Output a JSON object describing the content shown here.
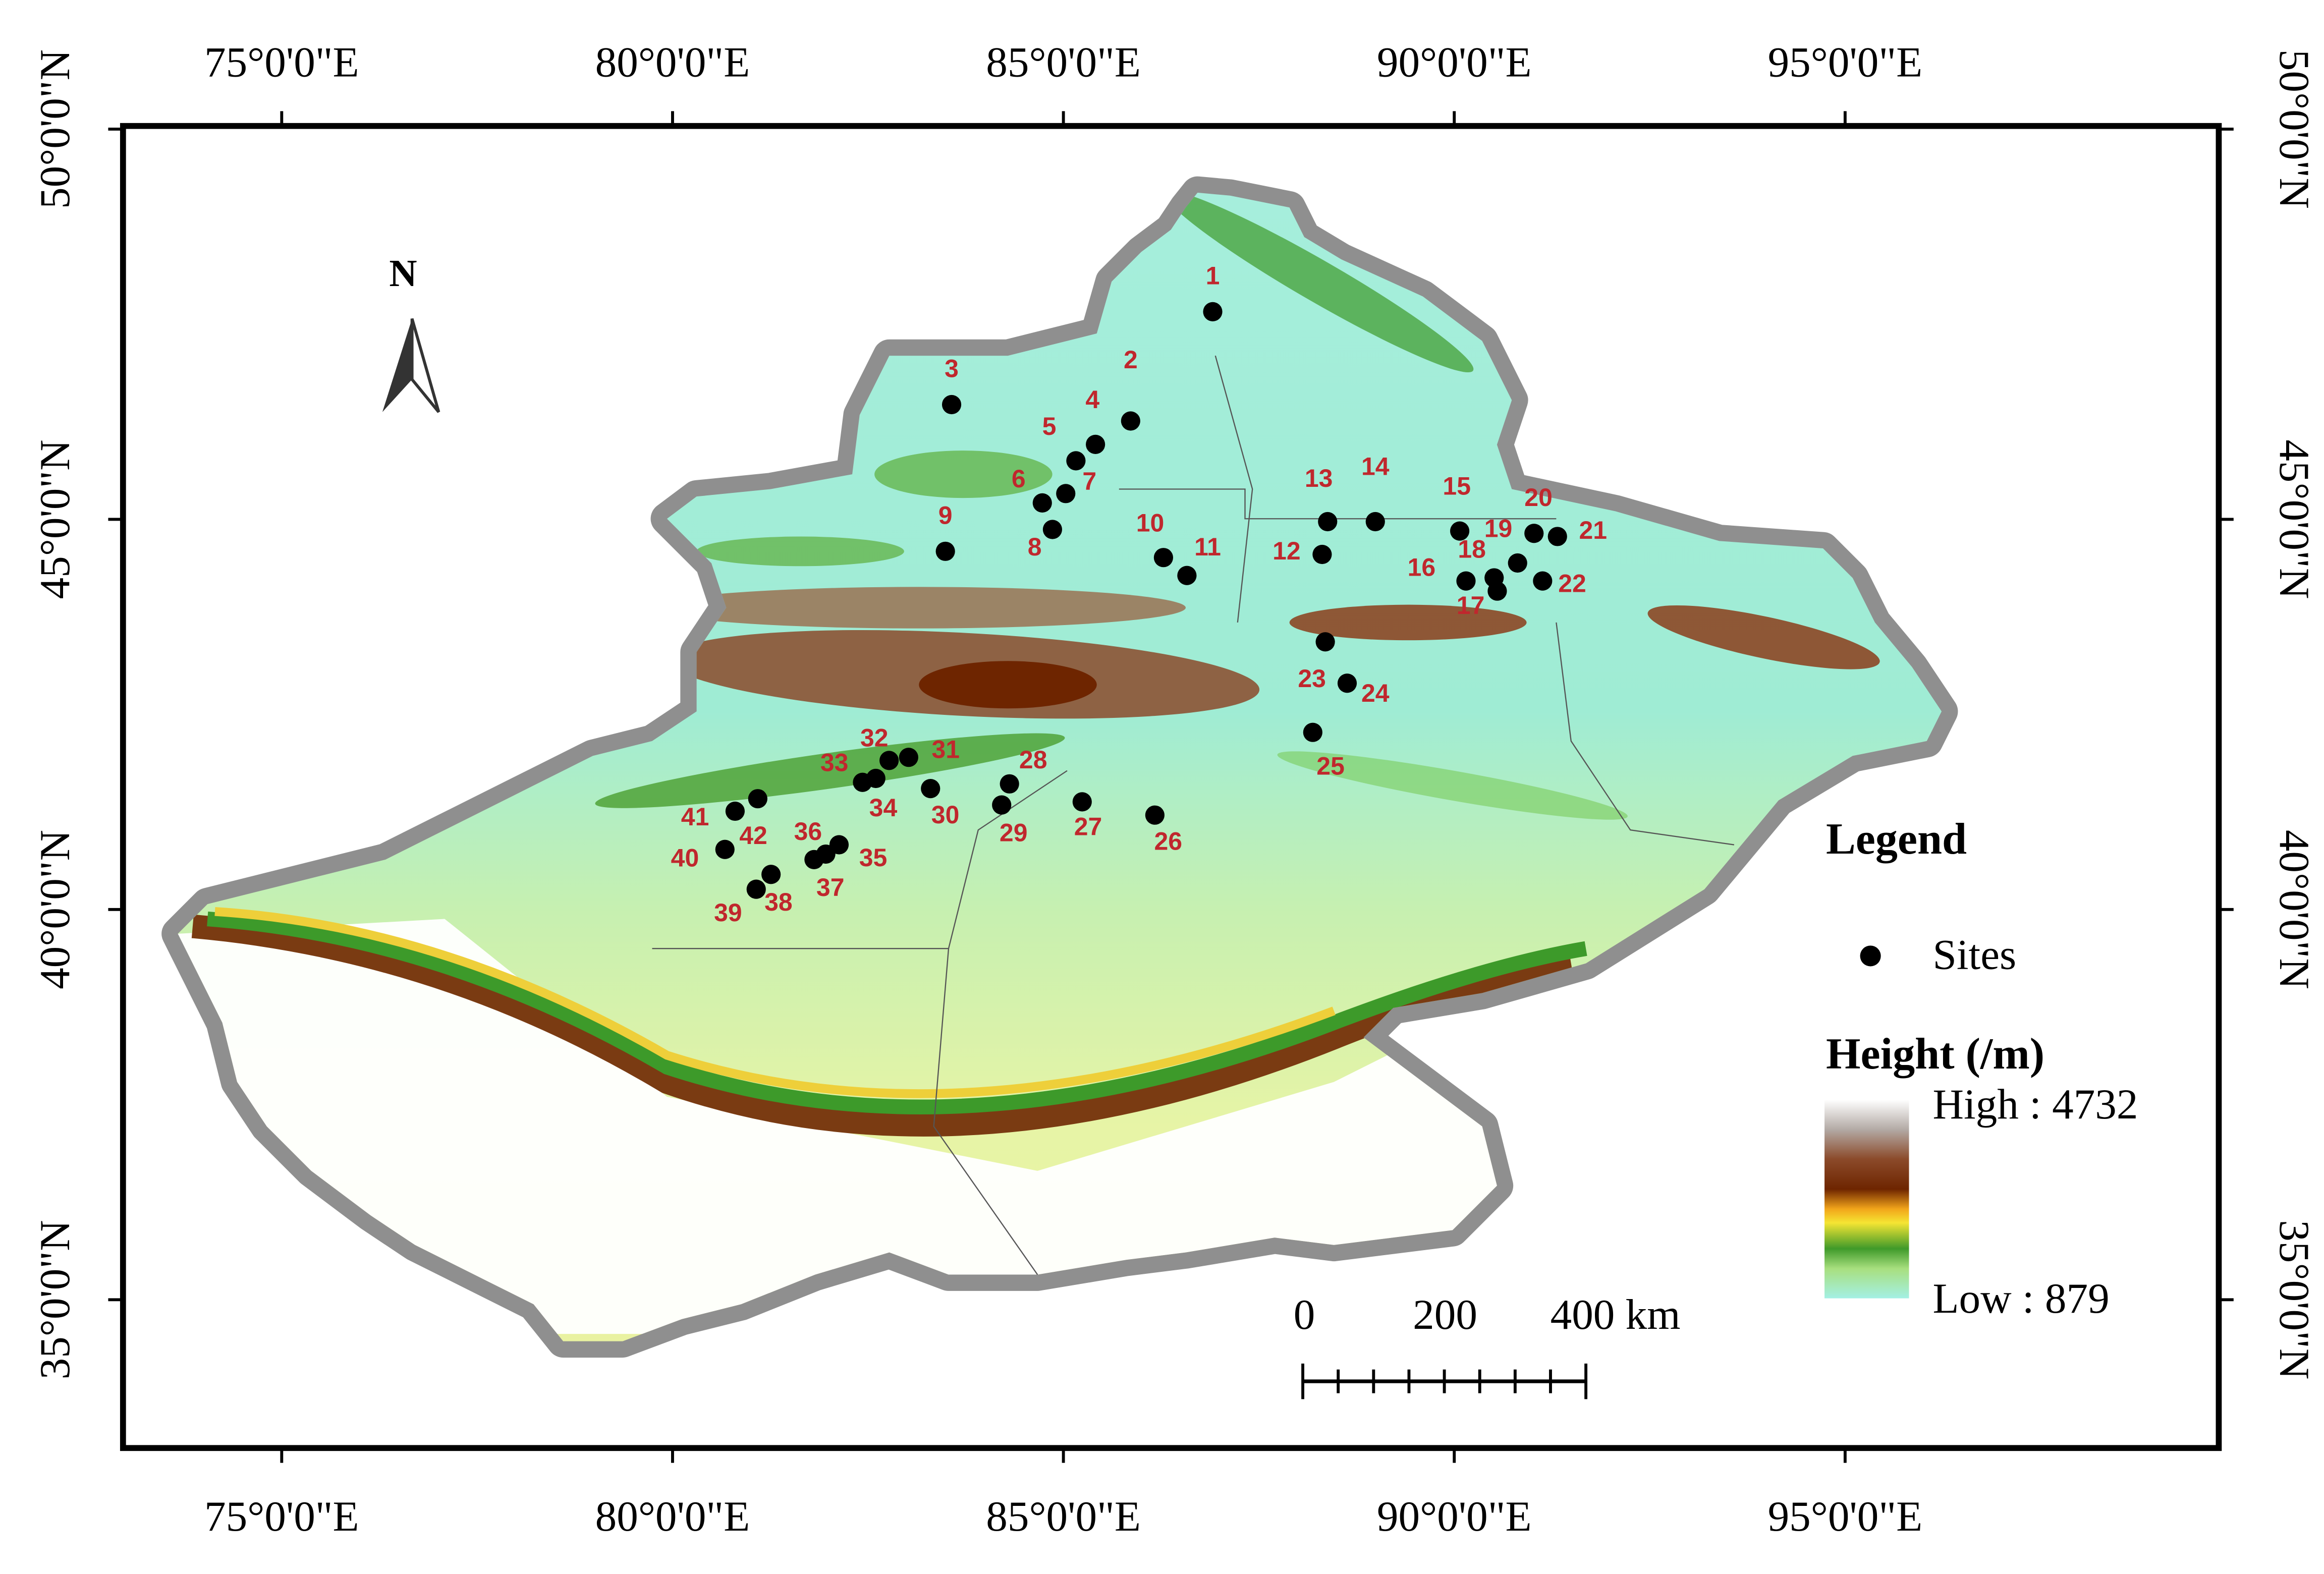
{
  "map": {
    "xlim": [
      72.97,
      99.78
    ],
    "ylim": [
      33.1,
      50.04
    ],
    "xticks": [
      {
        "value": 75,
        "label": "75°0'0\"E"
      },
      {
        "value": 80,
        "label": "80°0'0\"E"
      },
      {
        "value": 85,
        "label": "85°0'0\"E"
      },
      {
        "value": 90,
        "label": "90°0'0\"E"
      },
      {
        "value": 95,
        "label": "95°0'0\"E"
      }
    ],
    "yticks": [
      {
        "value": 35,
        "label": "35°0'0\"N"
      },
      {
        "value": 40,
        "label": "40°0'0\"N"
      },
      {
        "value": 45,
        "label": "45°0'0\"N"
      },
      {
        "value": 50,
        "label": "50°0'0\"N"
      }
    ],
    "north_label": "N",
    "sites": [
      {
        "label": "1",
        "lon": 86.91,
        "lat": 47.66
      },
      {
        "label": "2",
        "lon": 85.86,
        "lat": 46.26
      },
      {
        "label": "3",
        "lon": 83.57,
        "lat": 46.47
      },
      {
        "label": "4",
        "lon": 85.41,
        "lat": 45.96
      },
      {
        "label": "5",
        "lon": 85.16,
        "lat": 45.75
      },
      {
        "label": "6",
        "lon": 84.73,
        "lat": 45.21
      },
      {
        "label": "7",
        "lon": 85.03,
        "lat": 45.33
      },
      {
        "label": "8",
        "lon": 84.86,
        "lat": 44.87
      },
      {
        "label": "9",
        "lon": 83.49,
        "lat": 44.59
      },
      {
        "label": "10",
        "lon": 86.28,
        "lat": 44.51
      },
      {
        "label": "11",
        "lon": 86.58,
        "lat": 44.28
      },
      {
        "label": "12",
        "lon": 88.31,
        "lat": 44.55
      },
      {
        "label": "13",
        "lon": 88.38,
        "lat": 44.97
      },
      {
        "label": "14",
        "lon": 88.99,
        "lat": 44.97
      },
      {
        "label": "15",
        "lon": 90.07,
        "lat": 44.85
      },
      {
        "label": "16",
        "lon": 90.15,
        "lat": 44.21
      },
      {
        "label": "17",
        "lon": 90.55,
        "lat": 44.08
      },
      {
        "label": "18",
        "lon": 90.51,
        "lat": 44.25
      },
      {
        "label": "19",
        "lon": 90.81,
        "lat": 44.44
      },
      {
        "label": "20",
        "lon": 91.02,
        "lat": 44.82
      },
      {
        "label": "21",
        "lon": 91.32,
        "lat": 44.78
      },
      {
        "label": "22",
        "lon": 91.13,
        "lat": 44.21
      },
      {
        "label": "23",
        "lon": 88.35,
        "lat": 43.43
      },
      {
        "label": "24",
        "lon": 88.63,
        "lat": 42.9
      },
      {
        "label": "25",
        "lon": 88.19,
        "lat": 42.27
      },
      {
        "label": "26",
        "lon": 86.17,
        "lat": 41.21
      },
      {
        "label": "27",
        "lon": 85.24,
        "lat": 41.38
      },
      {
        "label": "28",
        "lon": 84.31,
        "lat": 41.61
      },
      {
        "label": "29",
        "lon": 84.21,
        "lat": 41.34
      },
      {
        "label": "30",
        "lon": 83.3,
        "lat": 41.55
      },
      {
        "label": "31",
        "lon": 83.02,
        "lat": 41.95
      },
      {
        "label": "32",
        "lon": 82.77,
        "lat": 41.91
      },
      {
        "label": "33",
        "lon": 82.43,
        "lat": 41.63
      },
      {
        "label": "34",
        "lon": 82.6,
        "lat": 41.68
      },
      {
        "label": "35",
        "lon": 82.13,
        "lat": 40.83
      },
      {
        "label": "36",
        "lon": 81.96,
        "lat": 40.71
      },
      {
        "label": "37",
        "lon": 81.81,
        "lat": 40.64
      },
      {
        "label": "38",
        "lon": 81.26,
        "lat": 40.45
      },
      {
        "label": "39",
        "lon": 81.07,
        "lat": 40.26
      },
      {
        "label": "40",
        "lon": 80.67,
        "lat": 40.77
      },
      {
        "label": "41",
        "lon": 80.8,
        "lat": 41.26
      },
      {
        "label": "42",
        "lon": 81.09,
        "lat": 41.42
      }
    ],
    "legend": {
      "title": "Legend",
      "sites_label": "Sites",
      "height_title": "Height (/m)",
      "high_label": "High : 4732",
      "low_label": "Low : 879"
    },
    "scale_bar": {
      "labels": [
        "0",
        "200",
        "400 km"
      ]
    }
  }
}
